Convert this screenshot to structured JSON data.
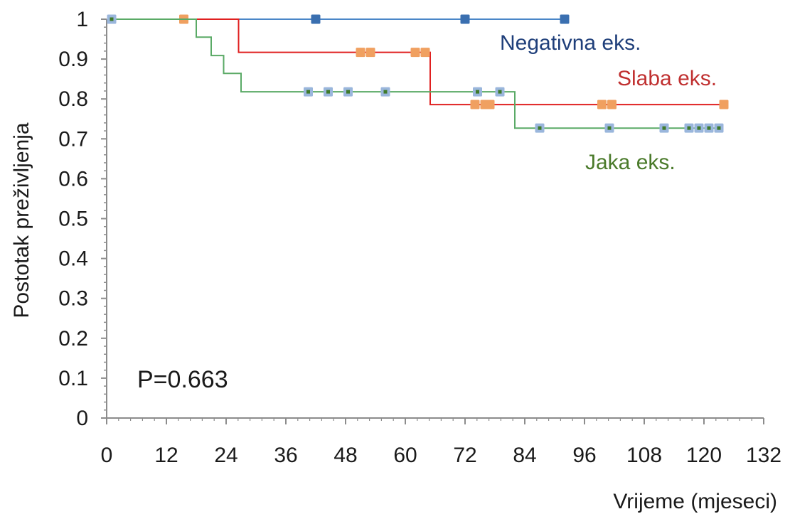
{
  "chart_data": {
    "type": "line",
    "subtype": "kaplan-meier-step",
    "xlabel": "Vrijeme (mjeseci)",
    "ylabel": "Postotak preživljenja",
    "xlim": [
      0,
      132
    ],
    "ylim": [
      0,
      1
    ],
    "x_ticks": [
      "0",
      "12",
      "24",
      "36",
      "48",
      "60",
      "72",
      "84",
      "96",
      "108",
      "120",
      "132"
    ],
    "y_ticks": [
      "0",
      "0.1",
      "0.2",
      "0.3",
      "0.4",
      "0.5",
      "0.6",
      "0.7",
      "0.8",
      "0.9",
      "1"
    ],
    "grid": false,
    "annotation": "P=0.663",
    "series": [
      {
        "name": "Negativna eks.",
        "line_color": "#4a86c8",
        "marker_color": "#3a6fb0",
        "label_color": "#1f3f7a",
        "steps": [
          [
            1,
            1.0
          ],
          [
            92,
            1.0
          ]
        ],
        "censored": [
          [
            42,
            1.0
          ],
          [
            72,
            1.0
          ],
          [
            92,
            1.0
          ]
        ]
      },
      {
        "name": "Slaba eks.",
        "line_color": "#e02020",
        "marker_color": "#f0a060",
        "label_color": "#c03030",
        "steps": [
          [
            15.5,
            1.0
          ],
          [
            26.5,
            1.0
          ],
          [
            26.5,
            0.917
          ],
          [
            65,
            0.917
          ],
          [
            65,
            0.786
          ],
          [
            124,
            0.786
          ]
        ],
        "censored": [
          [
            15.5,
            1.0
          ],
          [
            51,
            0.917
          ],
          [
            53,
            0.917
          ],
          [
            62,
            0.917
          ],
          [
            64,
            0.917
          ],
          [
            74,
            0.786
          ],
          [
            76,
            0.786
          ],
          [
            77,
            0.786
          ],
          [
            99.5,
            0.786
          ],
          [
            101.5,
            0.786
          ],
          [
            124,
            0.786
          ]
        ]
      },
      {
        "name": "Jaka eks.",
        "line_color": "#5aaa66",
        "marker_color": "#9ab6dc",
        "marker_inner": "#3f7a2a",
        "label_color": "#4a7a2a",
        "steps": [
          [
            1,
            1.0
          ],
          [
            18,
            1.0
          ],
          [
            18,
            0.955
          ],
          [
            21,
            0.955
          ],
          [
            21,
            0.909
          ],
          [
            23.5,
            0.909
          ],
          [
            23.5,
            0.864
          ],
          [
            27,
            0.864
          ],
          [
            27,
            0.818
          ],
          [
            82,
            0.818
          ],
          [
            82,
            0.727
          ],
          [
            123,
            0.727
          ]
        ],
        "censored": [
          [
            1,
            1.0
          ],
          [
            40.5,
            0.818
          ],
          [
            44.5,
            0.818
          ],
          [
            48.5,
            0.818
          ],
          [
            56,
            0.818
          ],
          [
            74.5,
            0.818
          ],
          [
            79,
            0.818
          ],
          [
            87,
            0.727
          ],
          [
            101,
            0.727
          ],
          [
            112,
            0.727
          ],
          [
            117,
            0.727
          ],
          [
            119,
            0.727
          ],
          [
            121,
            0.727
          ],
          [
            123,
            0.727
          ]
        ]
      }
    ]
  }
}
